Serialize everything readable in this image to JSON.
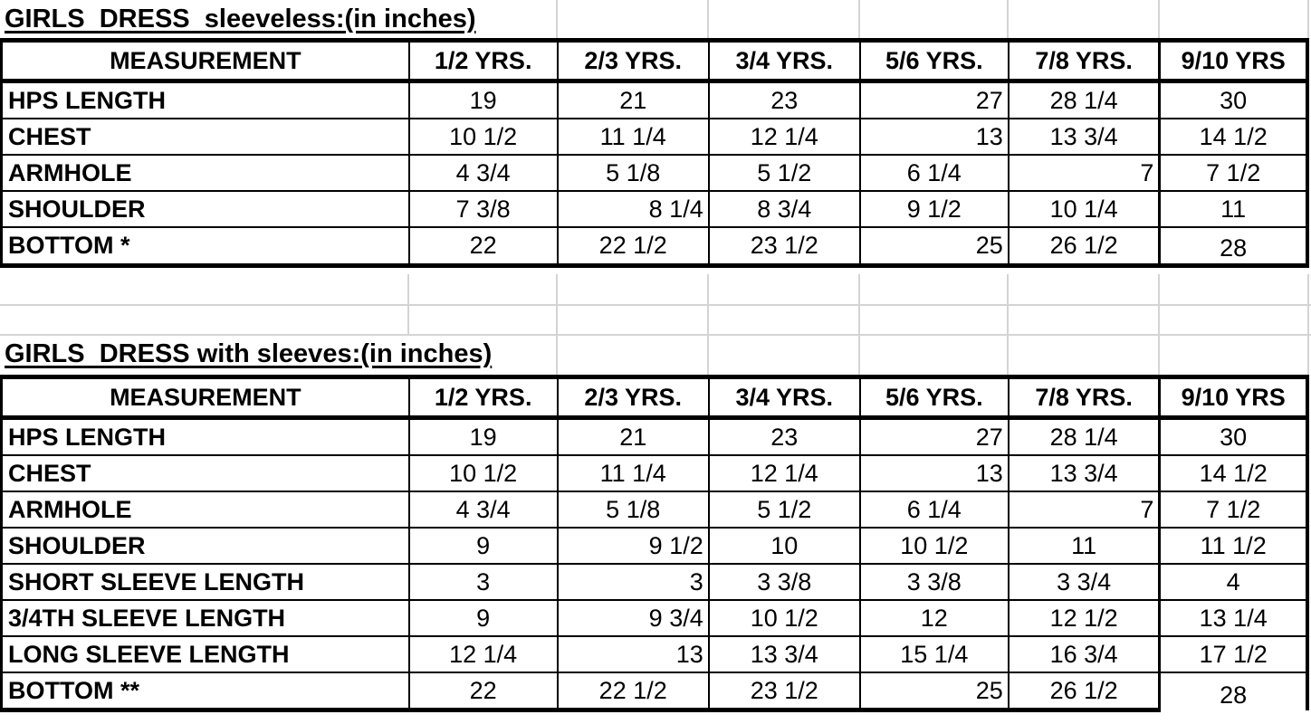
{
  "colors": {
    "text": "#000000",
    "table_border": "#000000",
    "gridline": "#d4d4d4",
    "background": "#ffffff"
  },
  "tables": [
    {
      "title": "GIRLS  DRESS  sleeveless:(in inches)",
      "columns": [
        "MEASUREMENT",
        "1/2 YRS.",
        "2/3 YRS.",
        "3/4 YRS.",
        "5/6 YRS.",
        "7/8 YRS.",
        "9/10 YRS"
      ],
      "rows": [
        {
          "label": "HPS LENGTH",
          "values": [
            "19",
            "21",
            "23",
            "27",
            "28 1/4",
            "30"
          ],
          "align": [
            "c",
            "c",
            "c",
            "r",
            "c",
            "c"
          ]
        },
        {
          "label": "CHEST",
          "values": [
            "10 1/2",
            "11 1/4",
            "12 1/4",
            "13",
            "13 3/4",
            "14 1/2"
          ],
          "align": [
            "c",
            "c",
            "c",
            "r",
            "c",
            "c"
          ]
        },
        {
          "label": "ARMHOLE",
          "values": [
            "4 3/4",
            "5 1/8",
            "5 1/2",
            "6 1/4",
            "7",
            "7 1/2"
          ],
          "align": [
            "c",
            "c",
            "c",
            "c",
            "r",
            "c"
          ]
        },
        {
          "label": "SHOULDER",
          "values": [
            "7 3/8",
            "8 1/4",
            "8 3/4",
            "9 1/2",
            "10 1/4",
            "11"
          ],
          "align": [
            "c",
            "r",
            "c",
            "c",
            "c",
            "c"
          ]
        },
        {
          "label": "BOTTOM *",
          "values": [
            "22",
            "22 1/2",
            "23 1/2",
            "25",
            "26 1/2",
            "28"
          ],
          "align": [
            "c",
            "c",
            "c",
            "r",
            "c",
            "c"
          ]
        }
      ]
    },
    {
      "title": "GIRLS  DRESS with sleeves:(in inches)",
      "columns": [
        "MEASUREMENT",
        "1/2 YRS.",
        "2/3 YRS.",
        "3/4 YRS.",
        "5/6 YRS.",
        "7/8 YRS.",
        "9/10 YRS"
      ],
      "rows": [
        {
          "label": "HPS LENGTH",
          "values": [
            "19",
            "21",
            "23",
            "27",
            "28 1/4",
            "30"
          ],
          "align": [
            "c",
            "c",
            "c",
            "r",
            "c",
            "c"
          ]
        },
        {
          "label": "CHEST",
          "values": [
            "10 1/2",
            "11 1/4",
            "12 1/4",
            "13",
            "13 3/4",
            "14 1/2"
          ],
          "align": [
            "c",
            "c",
            "c",
            "r",
            "c",
            "c"
          ]
        },
        {
          "label": "ARMHOLE",
          "values": [
            "4 3/4",
            "5 1/8",
            "5 1/2",
            "6 1/4",
            "7",
            "7 1/2"
          ],
          "align": [
            "c",
            "c",
            "c",
            "c",
            "r",
            "c"
          ]
        },
        {
          "label": "SHOULDER",
          "values": [
            "9",
            "9 1/2",
            "10",
            "10 1/2",
            "11",
            "11 1/2"
          ],
          "align": [
            "c",
            "r",
            "c",
            "c",
            "c",
            "c"
          ]
        },
        {
          "label": "SHORT SLEEVE LENGTH",
          "values": [
            "3",
            "3",
            "3 3/8",
            "3 3/8",
            "3 3/4",
            "4"
          ],
          "align": [
            "c",
            "r",
            "c",
            "c",
            "c",
            "c"
          ]
        },
        {
          "label": "3/4TH SLEEVE LENGTH",
          "values": [
            "9",
            "9 3/4",
            "10 1/2",
            "12",
            "12 1/2",
            "13 1/4"
          ],
          "align": [
            "c",
            "r",
            "c",
            "c",
            "c",
            "c"
          ]
        },
        {
          "label": "LONG SLEEVE LENGTH",
          "values": [
            "12 1/4",
            "13",
            "13 3/4",
            "15 1/4",
            "16 3/4",
            "17 1/2"
          ],
          "align": [
            "c",
            "r",
            "c",
            "c",
            "c",
            "c"
          ]
        },
        {
          "label": "BOTTOM **",
          "values": [
            "22",
            "22 1/2",
            "23 1/2",
            "25",
            "26 1/2",
            "28"
          ],
          "align": [
            "c",
            "c",
            "c",
            "r",
            "c",
            "c"
          ]
        }
      ]
    }
  ]
}
